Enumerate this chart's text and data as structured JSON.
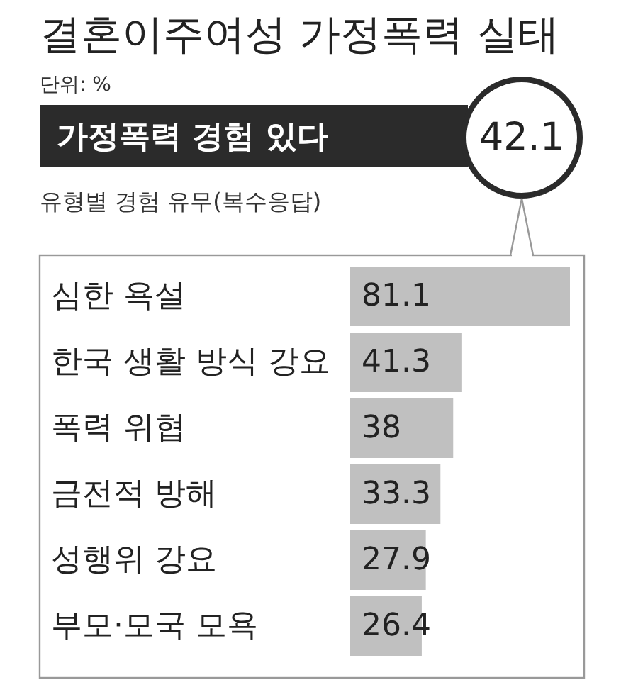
{
  "chart_data": {
    "type": "bar",
    "orientation": "horizontal",
    "title": "결혼이주여성 가정폭력 실태",
    "subtitle": "단위: %",
    "annotations": [
      "가정폭력 경험 있다",
      "42.1",
      "유형별 경험 유무(복수응답)"
    ],
    "categories": [
      "심한 욕설",
      "한국 생활 방식 강요",
      "폭력 위협",
      "금전적 방해",
      "성행위 강요",
      "부모·모국 모욕"
    ],
    "values": [
      81.1,
      41.3,
      38,
      33.3,
      27.9,
      26.4
    ],
    "color": "#c0c0c0",
    "data_labels": true
  }
}
